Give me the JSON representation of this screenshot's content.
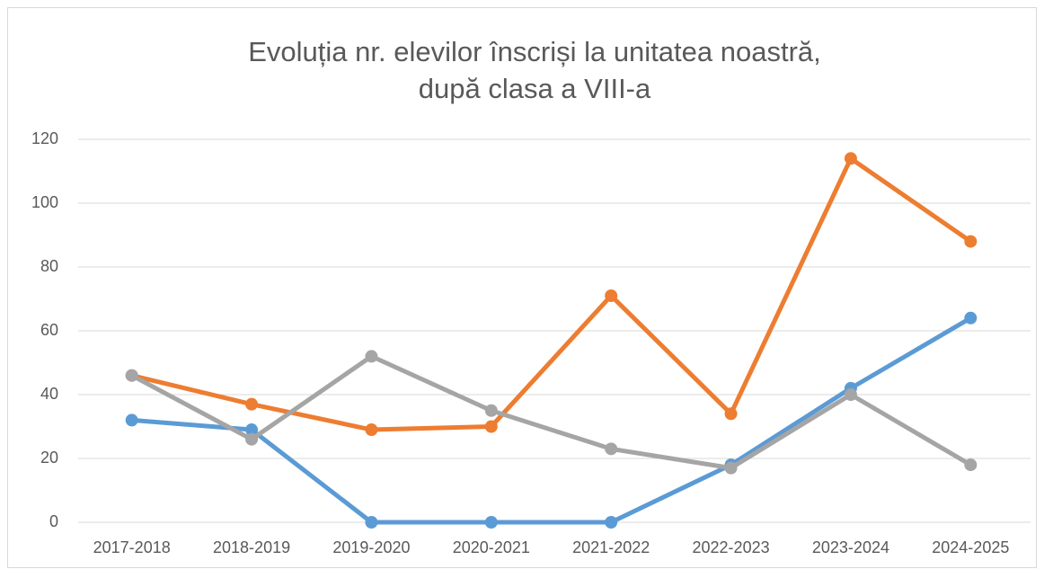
{
  "chart_data": {
    "type": "line",
    "title": [
      "Evoluția nr. elevilor înscriși la unitatea noastră,",
      "după clasa a VIII-a"
    ],
    "categories": [
      "2017-2018",
      "2018-2019",
      "2019-2020",
      "2020-2021",
      "2021-2022",
      "2022-2023",
      "2023-2024",
      "2024-2025"
    ],
    "series": [
      {
        "color": "#5b9bd5",
        "values": [
          32,
          29,
          0,
          0,
          0,
          18,
          42,
          64
        ]
      },
      {
        "color": "#ed7d31",
        "values": [
          46,
          37,
          29,
          30,
          71,
          34,
          114,
          88
        ]
      },
      {
        "color": "#a5a5a5",
        "values": [
          46,
          26,
          52,
          35,
          23,
          17,
          40,
          18
        ]
      }
    ],
    "ylim": [
      0,
      120
    ],
    "yticks": [
      0,
      20,
      40,
      60,
      80,
      100,
      120
    ],
    "grid": true
  }
}
